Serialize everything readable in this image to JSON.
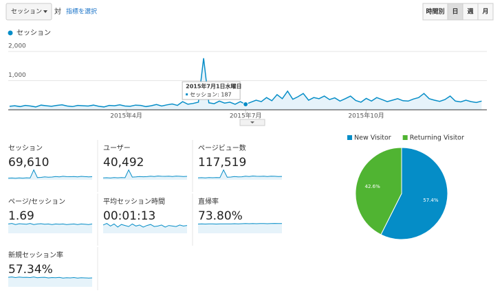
{
  "controls": {
    "metric": "セッション",
    "versus": "対",
    "select": "指標を選択",
    "periods": [
      "時間別",
      "日",
      "週",
      "月"
    ],
    "active_period": 1
  },
  "chart_data": [
    {
      "type": "line",
      "series": [
        {
          "name": "セッション",
          "color": "#058dc7",
          "values": [
            120,
            140,
            110,
            150,
            130,
            100,
            160,
            140,
            120,
            150,
            170,
            130,
            110,
            150,
            140,
            130,
            160,
            120,
            100,
            150,
            140,
            170,
            130,
            120,
            160,
            150,
            110,
            140,
            180,
            130,
            170,
            200,
            150,
            280,
            190,
            220,
            260,
            1770,
            240,
            210,
            300,
            230,
            260,
            190,
            280,
            187,
            260,
            330,
            280,
            420,
            310,
            520,
            380,
            640,
            360,
            450,
            560,
            330,
            420,
            380,
            470,
            350,
            410,
            300,
            380,
            470,
            320,
            260,
            390,
            300,
            420,
            350,
            280,
            330,
            380,
            310,
            300,
            370,
            420,
            560,
            380,
            330,
            290,
            350,
            470,
            300,
            270,
            330,
            280,
            250,
            300
          ]
        }
      ],
      "x": [
        2,
        6,
        10,
        14,
        18,
        22,
        26,
        30,
        34,
        38,
        42,
        46,
        50,
        54,
        58,
        62,
        66,
        70,
        74,
        78,
        82,
        86,
        90,
        94,
        98,
        102,
        106,
        110,
        114,
        118,
        122,
        126,
        130,
        134,
        138,
        142,
        146,
        150,
        154,
        158,
        162,
        166,
        170,
        174,
        178,
        182,
        186,
        190,
        194,
        198,
        202,
        206,
        210,
        214,
        218,
        222,
        226,
        230,
        234,
        238,
        242,
        246,
        250,
        254,
        258,
        262,
        266,
        270,
        274,
        278,
        282,
        286,
        290,
        294,
        298,
        302,
        306,
        310,
        314,
        318,
        322,
        326,
        330,
        334,
        338,
        342,
        346,
        350,
        354,
        358,
        362
      ],
      "xlim": [
        1,
        366
      ],
      "xticks": [
        {
          "value": 91,
          "label": "2015年4月"
        },
        {
          "value": 182,
          "label": "2015年7月"
        },
        {
          "value": 274,
          "label": "2015年10月"
        }
      ],
      "ylim": [
        0,
        2000
      ],
      "yticks": [
        {
          "value": 1000,
          "label": "1,000"
        },
        {
          "value": 2000,
          "label": "2,000"
        }
      ],
      "grid": true,
      "tooltip": {
        "date": "2015年7月1日水曜日",
        "text": "セッション: 187",
        "index": 45
      }
    },
    {
      "type": "pie",
      "categories": [
        "New Visitor",
        "Returning Visitor"
      ],
      "values": [
        57.4,
        42.6
      ],
      "value_labels": [
        "57.4%",
        "42.6%"
      ],
      "colors": [
        "#058dc7",
        "#50b432"
      ]
    }
  ],
  "metrics": [
    {
      "label": "セッション",
      "value": "69,610",
      "sparkline": [
        150,
        160,
        140,
        170,
        150,
        180,
        160,
        900,
        200,
        220,
        260,
        230,
        250,
        300,
        270,
        320,
        290,
        280,
        300,
        260,
        310,
        290,
        270,
        280
      ]
    },
    {
      "label": "ユーザー",
      "value": "40,492",
      "sparkline": [
        100,
        110,
        95,
        115,
        105,
        120,
        110,
        520,
        140,
        150,
        170,
        160,
        165,
        190,
        175,
        200,
        185,
        180,
        190,
        170,
        195,
        185,
        175,
        180
      ]
    },
    {
      "label": "ページビュー数",
      "value": "117,519",
      "sparkline": [
        260,
        280,
        250,
        290,
        270,
        300,
        280,
        1300,
        340,
        360,
        420,
        380,
        400,
        470,
        430,
        500,
        460,
        450,
        470,
        420,
        480,
        460,
        430,
        440
      ]
    },
    {
      "label": "ページ/セッション",
      "value": "1.69",
      "sparkline": [
        1.7,
        1.8,
        1.6,
        1.75,
        1.7,
        1.65,
        1.8,
        1.6,
        1.7,
        1.75,
        1.65,
        1.7,
        1.6,
        1.7,
        1.65,
        1.7,
        1.6,
        1.65,
        1.7,
        1.6,
        1.7,
        1.65,
        1.6,
        1.7
      ]
    },
    {
      "label": "平均セッション時間",
      "value": "00:01:13",
      "sparkline": [
        80,
        95,
        70,
        90,
        60,
        85,
        75,
        65,
        90,
        70,
        80,
        60,
        75,
        85,
        65,
        70,
        80,
        60,
        75,
        70,
        65,
        80,
        70,
        75
      ]
    },
    {
      "label": "直帰率",
      "value": "73.80%",
      "sparkline": [
        72,
        73,
        72,
        74,
        73,
        72,
        74,
        73,
        73,
        74,
        75,
        74,
        75,
        76,
        75,
        76,
        75,
        76,
        76,
        75,
        76,
        77,
        76,
        76
      ]
    },
    {
      "label": "新規セッション率",
      "value": "57.34%",
      "sparkline": [
        60,
        62,
        58,
        61,
        59,
        60,
        58,
        62,
        57,
        59,
        60,
        56,
        58,
        57,
        59,
        55,
        57,
        56,
        58,
        55,
        57,
        56,
        55,
        56
      ]
    }
  ]
}
